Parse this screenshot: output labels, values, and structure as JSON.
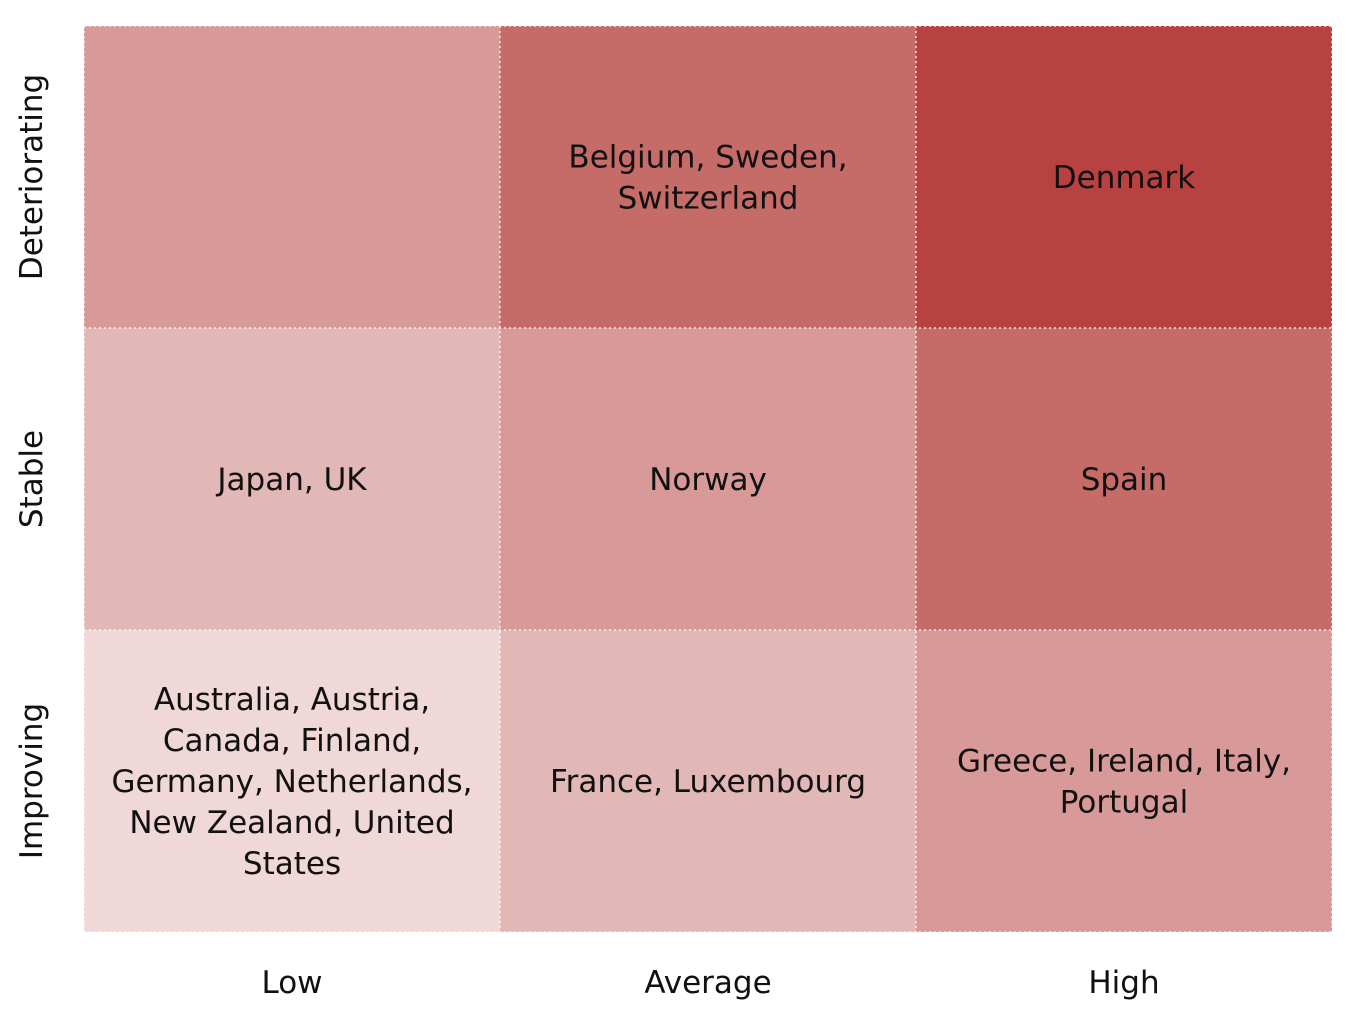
{
  "chart_data": {
    "type": "heatmap",
    "title": "",
    "xlabel": "",
    "ylabel": "",
    "x_categories": [
      "Low",
      "Average",
      "High"
    ],
    "y_categories": [
      "Deteriorating",
      "Stable",
      "Improving"
    ],
    "cells": [
      {
        "row": "Deteriorating",
        "col": "Low",
        "text": "",
        "color": "#d89a98"
      },
      {
        "row": "Deteriorating",
        "col": "Average",
        "text": "Belgium, Sweden, Switzerland",
        "color": "#c56c69"
      },
      {
        "row": "Deteriorating",
        "col": "High",
        "text": "Denmark",
        "color": "#b84241"
      },
      {
        "row": "Stable",
        "col": "Low",
        "text": "Japan, UK",
        "color": "#e2b8b6"
      },
      {
        "row": "Stable",
        "col": "Average",
        "text": "Norway",
        "color": "#d89a98"
      },
      {
        "row": "Stable",
        "col": "High",
        "text": "Spain",
        "color": "#c56c69"
      },
      {
        "row": "Improving",
        "col": "Low",
        "text": "Australia, Austria, Canada, Finland, Germany, Netherlands, New Zealand, United States",
        "color": "#f0d8d8"
      },
      {
        "row": "Improving",
        "col": "Average",
        "text": "France, Luxembourg",
        "color": "#e2b8b6"
      },
      {
        "row": "Improving",
        "col": "High",
        "text": "Greece, Ireland, Italy, Portugal",
        "color": "#d89a98"
      }
    ],
    "grid": true,
    "grid_style": "dotted-white",
    "legend": "none"
  }
}
